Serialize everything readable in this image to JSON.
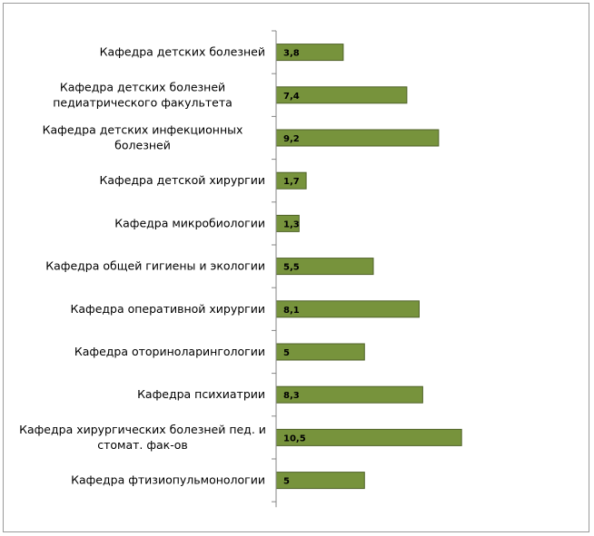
{
  "chart_data": {
    "type": "bar",
    "orientation": "horizontal",
    "categories": [
      [
        "Кафедра детских болезней"
      ],
      [
        "Кафедра детских болезней",
        "педиатрического факультета"
      ],
      [
        "Кафедра детских инфекционных",
        "болезней"
      ],
      [
        "Кафедра детской хирургии"
      ],
      [
        "Кафедра микробиологии"
      ],
      [
        "Кафедра общей гигиены и экологии"
      ],
      [
        "Кафедра оперативной хирургии"
      ],
      [
        "Кафедра оториноларингологии"
      ],
      [
        "Кафедра психиатрии"
      ],
      [
        "Кафедра хирургических болезней пед. и",
        "стомат. фак-ов"
      ],
      [
        "Кафедра фтизиопульмонологии"
      ]
    ],
    "values": [
      3.8,
      7.4,
      9.2,
      1.7,
      1.3,
      5.5,
      8.1,
      5,
      8.3,
      10.5,
      5
    ],
    "value_labels": [
      "3,8",
      "7,4",
      "9,2",
      "1,7",
      "1,3",
      "5,5",
      "8,1",
      "5",
      "8,3",
      "10,5",
      "5"
    ],
    "title": "",
    "xlabel": "",
    "ylabel": "",
    "xlim": [
      0,
      12
    ],
    "grid": false,
    "legend": "none",
    "bar_color": "#77933c",
    "bar_edge_color": "#4f6228",
    "axis_color": "#868686"
  }
}
